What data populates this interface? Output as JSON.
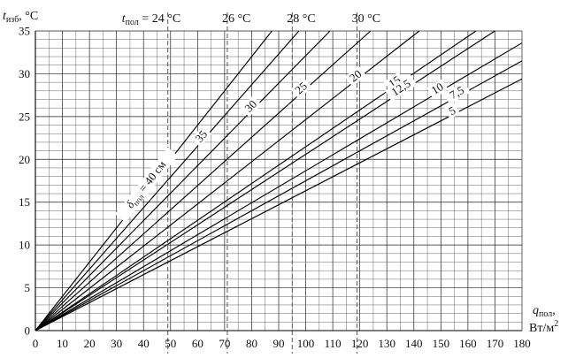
{
  "chart_data": {
    "type": "line",
    "xlabel_var": "q",
    "xlabel_sub": "пол",
    "xlabel_sep": ",",
    "xlabel_unit": "Вт/м",
    "xlabel_unit_sup": "2",
    "ylabel_var": "t",
    "ylabel_sub": "изб",
    "ylabel_unit": ", °C",
    "xlim": [
      0,
      180
    ],
    "ylim": [
      0,
      35
    ],
    "x_ticks": [
      0,
      10,
      20,
      30,
      40,
      50,
      60,
      70,
      80,
      90,
      100,
      110,
      120,
      130,
      140,
      150,
      160,
      170,
      180
    ],
    "y_ticks": [
      0,
      5,
      10,
      15,
      20,
      25,
      30,
      35
    ],
    "grid": true,
    "series_label_prefix": {
      "var": "δ",
      "sub": "пол",
      "text": " = 40 см"
    },
    "series": [
      {
        "name": "40",
        "label": "δпол = 40 см",
        "x": [
          0,
          87.5
        ],
        "y": [
          0,
          35
        ]
      },
      {
        "name": "35",
        "label": "35",
        "x": [
          0,
          97.5
        ],
        "y": [
          0,
          35
        ]
      },
      {
        "name": "30",
        "label": "30",
        "x": [
          0,
          109
        ],
        "y": [
          0,
          35
        ]
      },
      {
        "name": "25",
        "label": "25",
        "x": [
          0,
          124
        ],
        "y": [
          0,
          35
        ]
      },
      {
        "name": "20",
        "label": "20",
        "x": [
          0,
          142
        ],
        "y": [
          0,
          35
        ]
      },
      {
        "name": "15",
        "label": "15",
        "x": [
          0,
          163
        ],
        "y": [
          0,
          35
        ]
      },
      {
        "name": "12,5",
        "label": "12,5",
        "x": [
          0,
          170
        ],
        "y": [
          0,
          35
        ]
      },
      {
        "name": "10",
        "label": "10",
        "x": [
          0,
          180
        ],
        "y": [
          0,
          33.6
        ]
      },
      {
        "name": "7,5",
        "label": "7,5",
        "x": [
          0,
          180
        ],
        "y": [
          0,
          31.5
        ]
      },
      {
        "name": "5",
        "label": "5",
        "x": [
          0,
          180
        ],
        "y": [
          0,
          29.4
        ]
      }
    ],
    "floor_temperature_lines": {
      "var": "t",
      "sub": "пол",
      "prefix_sep": " = ",
      "items": [
        {
          "label": "24 °C",
          "x": 49
        },
        {
          "label": "26 °C",
          "x": 71
        },
        {
          "label": "28 °C",
          "x": 95
        },
        {
          "label": "30 °C",
          "x": 119
        }
      ]
    }
  }
}
